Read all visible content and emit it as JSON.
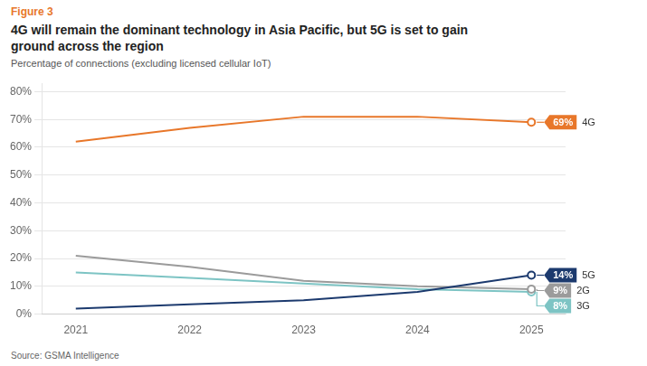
{
  "chart_data": {
    "type": "line",
    "figure_label": "Figure 3",
    "title": "4G will remain the dominant technology in Asia Pacific, but 5G is set to gain\nground across the region",
    "subtitle": "Percentage of connections (excluding licensed cellular IoT)",
    "source": "Source: GSMA Intelligence",
    "x": [
      2021,
      2022,
      2023,
      2024,
      2025
    ],
    "series": [
      {
        "name": "4G",
        "color": "#E8772A",
        "values": [
          62,
          67,
          71,
          71,
          69
        ]
      },
      {
        "name": "5G",
        "color": "#1C3A6E",
        "values": [
          2,
          3.5,
          5,
          8,
          14
        ]
      },
      {
        "name": "2G",
        "color": "#9B9B9B",
        "values": [
          21,
          17,
          12,
          10,
          9
        ]
      },
      {
        "name": "3G",
        "color": "#7DC4C4",
        "values": [
          15,
          13,
          11,
          9,
          8
        ]
      }
    ],
    "annotations": [
      {
        "series": "4G",
        "x": 2025,
        "y": 69,
        "text": "69%"
      },
      {
        "series": "5G",
        "x": 2025,
        "y": 14,
        "text": "14%"
      },
      {
        "series": "2G",
        "x": 2025,
        "y": 9,
        "text": "9%"
      },
      {
        "series": "3G",
        "x": 2025,
        "y": 8,
        "text": "8%"
      }
    ],
    "xlim": [
      2020.7,
      2025.3
    ],
    "xticks": [
      2021,
      2022,
      2023,
      2024,
      2025
    ],
    "ylim": [
      0,
      83
    ],
    "yticks": [
      {
        "value": 0,
        "label": "0%"
      },
      {
        "value": 10,
        "label": "10%"
      },
      {
        "value": 20,
        "label": "20%"
      },
      {
        "value": 30,
        "label": "30%"
      },
      {
        "value": 40,
        "label": "40%"
      },
      {
        "value": 50,
        "label": "50%"
      },
      {
        "value": 60,
        "label": "60%"
      },
      {
        "value": 70,
        "label": "70%"
      },
      {
        "value": 80,
        "label": "80%"
      }
    ],
    "grid": "y"
  }
}
